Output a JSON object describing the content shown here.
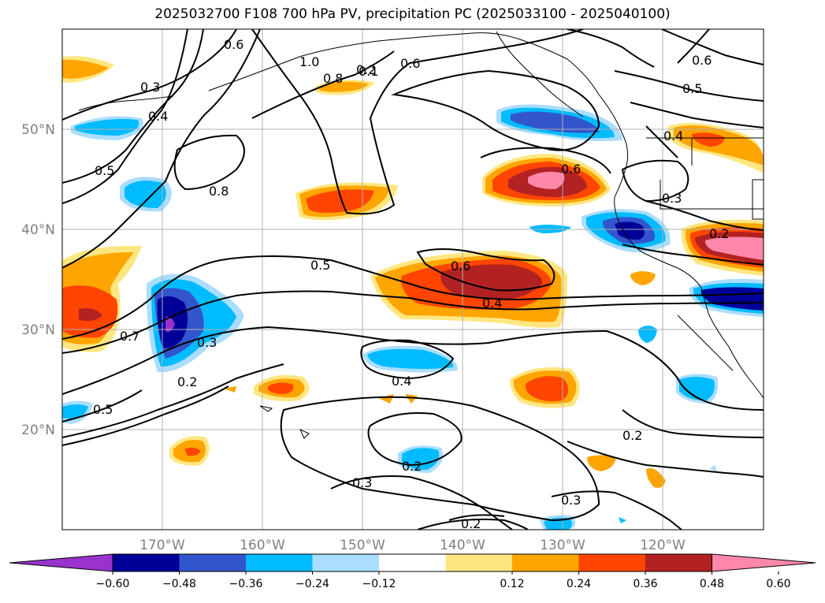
{
  "title": "2025032700 F108 700 hPa PV, precipitation PC (2025033100 - 2025040100)",
  "map": {
    "lon_range": [
      -180,
      -110
    ],
    "lat_range": [
      10,
      60
    ],
    "lon_ticks": [
      "170°W",
      "160°W",
      "150°W",
      "140°W",
      "130°W",
      "120°W"
    ],
    "lat_ticks": [
      "20°N",
      "30°N",
      "40°N",
      "50°N"
    ],
    "grid": true,
    "fields": {
      "contours": "700 hPa PV",
      "shading": "precipitation PC"
    }
  },
  "contour_labels": [
    "0.3",
    "0.4",
    "0.5",
    "0.6",
    "0.7",
    "0.8",
    "1.0",
    "0.1",
    "0.2",
    "0.5",
    "0.6",
    "0.8",
    "0.5",
    "0.6",
    "0.4",
    "0.3",
    "0.2",
    "0.4",
    "0.2",
    "0.3",
    "0.3",
    "0.2",
    "0.2",
    "0.6",
    "0.5",
    "0.4",
    "0.3",
    "0.2",
    "0.6"
  ],
  "colorbar": {
    "ticks": [
      "−0.60",
      "−0.48",
      "−0.36",
      "−0.24",
      "−0.12",
      "0.12",
      "0.24",
      "0.36",
      "0.48",
      "0.60"
    ],
    "colors": [
      "#9933cc",
      "#000099",
      "#3355cc",
      "#00bbff",
      "#aaddff",
      "#ffffff",
      "#ffe680",
      "#ffa500",
      "#ff4500",
      "#b22222",
      "#ff88aa"
    ],
    "extend": "both"
  }
}
